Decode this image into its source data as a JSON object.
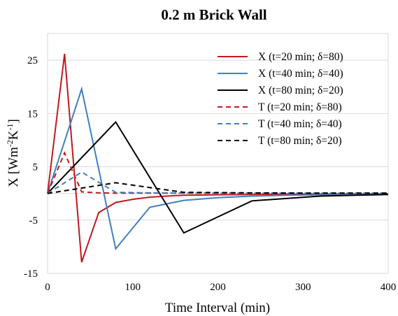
{
  "chart_data": {
    "type": "line",
    "title": "0.2 m Brick Wall",
    "xlabel": "Time Interval (min)",
    "ylabel_main": "X [Wm",
    "ylabel_sup1": "-2",
    "ylabel_mid": "K",
    "ylabel_sup2": "-1",
    "ylabel_end": "]",
    "xlim": [
      0,
      400
    ],
    "ylim": [
      -15,
      30
    ],
    "x_ticks": [
      0,
      100,
      200,
      300,
      400
    ],
    "y_ticks": [
      -15,
      -5,
      5,
      15,
      25
    ],
    "grid": "horizontal",
    "legend_position": "top-right",
    "series": [
      {
        "name": "X (t=20 min;  δ=80)",
        "color": "#c0191f",
        "dash": "solid",
        "x": [
          0,
          20,
          40,
          60,
          80,
          100,
          120,
          140,
          160,
          180,
          200,
          240,
          300,
          400
        ],
        "y": [
          0,
          26.2,
          -12.9,
          -3.6,
          -1.7,
          -1.1,
          -0.7,
          -0.5,
          -0.35,
          -0.3,
          -0.25,
          -0.2,
          -0.15,
          -0.1
        ]
      },
      {
        "name": "X (t=40 min;  δ=40)",
        "color": "#3f7fbf",
        "dash": "solid",
        "x": [
          0,
          40,
          80,
          120,
          160,
          200,
          240,
          280,
          320,
          360,
          400
        ],
        "y": [
          0,
          19.6,
          -10.4,
          -2.6,
          -1.3,
          -0.8,
          -0.5,
          -0.35,
          -0.25,
          -0.2,
          -0.15
        ]
      },
      {
        "name": "X (t=80 min;  δ=20)",
        "color": "#000000",
        "dash": "solid",
        "x": [
          0,
          80,
          160,
          240,
          320,
          400
        ],
        "y": [
          0,
          13.4,
          -7.4,
          -1.4,
          -0.5,
          -0.2
        ]
      },
      {
        "name": "T (t=20 min;  δ=80)",
        "color": "#c0191f",
        "dash": "dashed",
        "x": [
          0,
          20,
          40,
          60,
          80,
          100,
          120,
          140,
          160,
          180,
          200,
          300,
          400
        ],
        "y": [
          0,
          7.6,
          0.3,
          0.1,
          0.05,
          0.05,
          0.05,
          0.05,
          0.05,
          0.05,
          0.05,
          0.05,
          0.05
        ]
      },
      {
        "name": "T (t=40 min;  δ=40)",
        "color": "#3f7fbf",
        "dash": "dashed",
        "x": [
          0,
          40,
          80,
          120,
          160,
          200,
          240,
          300,
          400
        ],
        "y": [
          0,
          4.0,
          0.2,
          0.1,
          0.05,
          0.05,
          0.05,
          0.05,
          0.05
        ]
      },
      {
        "name": "T (t=80 min;  δ=20)",
        "color": "#000000",
        "dash": "dashed",
        "x": [
          0,
          80,
          160,
          240,
          320,
          400
        ],
        "y": [
          0,
          2.0,
          0.2,
          0.1,
          0.05,
          0.05
        ]
      }
    ]
  }
}
